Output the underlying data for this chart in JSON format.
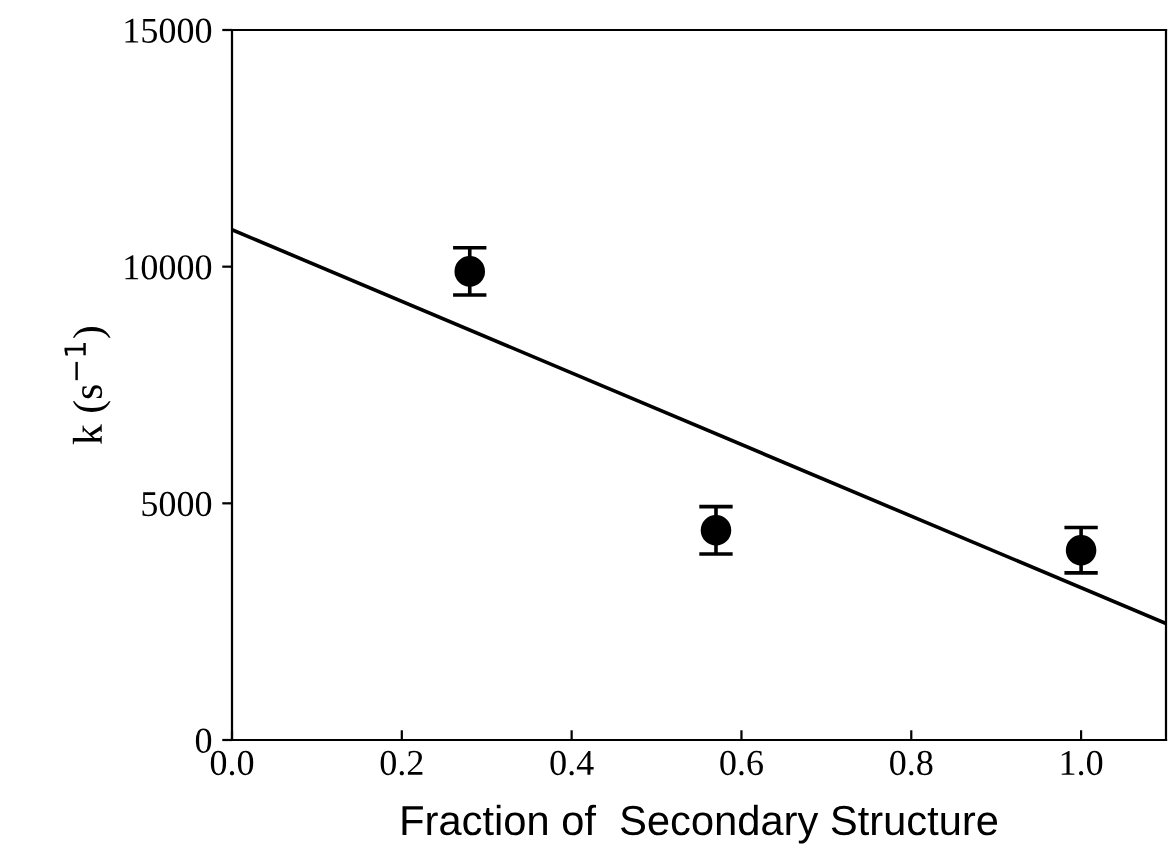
{
  "chart_data": {
    "type": "scatter",
    "xlabel": "Fraction of  Secondary Structure",
    "ylabel": "k (s$^{−1}$)",
    "series": [
      {
        "color": "#000000",
        "x": [
          0.28,
          0.57,
          1.0
        ],
        "values": [
          9900,
          4430,
          4010
        ],
        "errors": [
          500,
          500,
          480
        ],
        "marker": "circle"
      },
      {
        "type": "line",
        "color": "#000000",
        "x": [
          0.0,
          1.1
        ],
        "values": [
          10780,
          2460
        ],
        "line_style": "solid"
      }
    ],
    "xlim": [
      0.0,
      1.1
    ],
    "xticks": [
      {
        "value": 0.0,
        "label": "0.0"
      },
      {
        "value": 0.2,
        "label": "0.2"
      },
      {
        "value": 0.4,
        "label": "0.4"
      },
      {
        "value": 0.6,
        "label": "0.6"
      },
      {
        "value": 0.8,
        "label": "0.8"
      },
      {
        "value": 1.0,
        "label": "1.0"
      }
    ],
    "ylim": [
      0,
      15000
    ],
    "yticks": [
      0,
      5000,
      10000,
      15000
    ],
    "grid": false,
    "legend": false
  }
}
